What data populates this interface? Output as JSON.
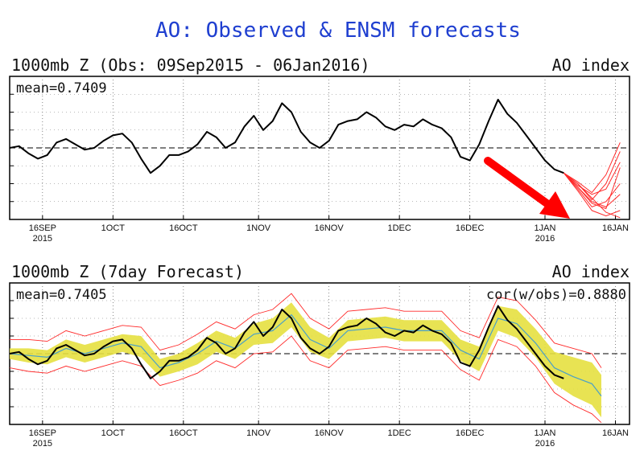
{
  "title": "AO: Observed & ENSM forecasts",
  "colors": {
    "title": "#1f3fd0",
    "observed": "#000000",
    "forecast_members": "#ff2a2a",
    "ensemble_spread": "#e6e040",
    "ensemble_mean": "#4aa0c8",
    "arrow": "#ff0000"
  },
  "chart_data": [
    {
      "type": "line",
      "panel_title": "1000mb Z (Obs: 09Sep2015 - 06Jan2016)",
      "index_label": "AO index",
      "stat_label": "mean=0.7409",
      "x_ticks": [
        {
          "day": 7,
          "label": "16SEP",
          "sub": "2015"
        },
        {
          "day": 22,
          "label": "1OCT",
          "sub": ""
        },
        {
          "day": 37,
          "label": "16OCT",
          "sub": ""
        },
        {
          "day": 53,
          "label": "1NOV",
          "sub": ""
        },
        {
          "day": 68,
          "label": "16NOV",
          "sub": ""
        },
        {
          "day": 83,
          "label": "1DEC",
          "sub": ""
        },
        {
          "day": 98,
          "label": "16DEC",
          "sub": ""
        },
        {
          "day": 114,
          "label": "1JAN",
          "sub": "2016"
        },
        {
          "day": 129,
          "label": "16JAN",
          "sub": ""
        }
      ],
      "xlim": [
        0,
        132
      ],
      "ylim": [
        -4,
        4
      ],
      "zero_line": "dashed",
      "grid": "dotted",
      "series": [
        {
          "role": "observed",
          "x": [
            0,
            2,
            4,
            6,
            8,
            10,
            12,
            14,
            16,
            18,
            20,
            22,
            24,
            26,
            28,
            30,
            32,
            34,
            36,
            38,
            40,
            42,
            44,
            46,
            48,
            50,
            52,
            54,
            56,
            58,
            60,
            62,
            64,
            66,
            68,
            70,
            72,
            74,
            76,
            78,
            80,
            82,
            84,
            86,
            88,
            90,
            92,
            94,
            96,
            98,
            100,
            102,
            104,
            106,
            108,
            110,
            112,
            114,
            116,
            118
          ],
          "y": [
            0.0,
            0.1,
            -0.3,
            -0.6,
            -0.4,
            0.3,
            0.5,
            0.2,
            -0.1,
            0.0,
            0.4,
            0.7,
            0.8,
            0.3,
            -0.6,
            -1.4,
            -1.0,
            -0.4,
            -0.4,
            -0.2,
            0.2,
            0.9,
            0.6,
            0.0,
            0.3,
            1.2,
            1.8,
            1.0,
            1.5,
            2.5,
            2.0,
            0.9,
            0.3,
            0.0,
            0.4,
            1.3,
            1.5,
            1.6,
            2.0,
            1.7,
            1.2,
            1.0,
            1.3,
            1.2,
            1.6,
            1.3,
            1.1,
            0.6,
            -0.5,
            -0.7,
            0.2,
            1.5,
            2.7,
            1.9,
            1.4,
            0.7,
            0.0,
            -0.7,
            -1.2,
            -1.4
          ]
        },
        {
          "role": "forecast_member",
          "x": [
            118,
            121,
            124,
            127,
            130
          ],
          "y": [
            -1.4,
            -2.2,
            -3.0,
            -3.3,
            -2.6
          ]
        },
        {
          "role": "forecast_member",
          "x": [
            118,
            121,
            124,
            127,
            130
          ],
          "y": [
            -1.4,
            -2.0,
            -2.8,
            -3.6,
            -3.9
          ]
        },
        {
          "role": "forecast_member",
          "x": [
            118,
            121,
            124,
            127,
            130
          ],
          "y": [
            -1.4,
            -2.3,
            -3.3,
            -3.0,
            -2.0
          ]
        },
        {
          "role": "forecast_member",
          "x": [
            118,
            121,
            124,
            127,
            130
          ],
          "y": [
            -1.4,
            -2.1,
            -2.6,
            -2.3,
            -0.8
          ]
        },
        {
          "role": "forecast_member",
          "x": [
            118,
            121,
            124,
            127,
            130
          ],
          "y": [
            -1.4,
            -2.4,
            -3.5,
            -3.8,
            -3.5
          ]
        },
        {
          "role": "forecast_member",
          "x": [
            118,
            121,
            124,
            127,
            130
          ],
          "y": [
            -1.4,
            -1.9,
            -2.5,
            -1.5,
            0.3
          ]
        },
        {
          "role": "forecast_member",
          "x": [
            118,
            121,
            124,
            127,
            130
          ],
          "y": [
            -1.4,
            -2.2,
            -3.1,
            -3.4,
            -1.1
          ]
        },
        {
          "role": "forecast_member",
          "x": [
            118,
            121,
            124,
            127,
            130
          ],
          "y": [
            -1.4,
            -2.0,
            -2.9,
            -2.0,
            -0.2
          ]
        }
      ]
    },
    {
      "type": "line",
      "panel_title": "1000mb Z (7day Forecast)",
      "index_label": "AO index",
      "stat_label": "mean=0.7405",
      "stat_label_right": "cor(w/obs)=0.8880",
      "x_ticks": [
        {
          "day": 7,
          "label": "16SEP",
          "sub": "2015"
        },
        {
          "day": 22,
          "label": "1OCT",
          "sub": ""
        },
        {
          "day": 37,
          "label": "16OCT",
          "sub": ""
        },
        {
          "day": 53,
          "label": "1NOV",
          "sub": ""
        },
        {
          "day": 68,
          "label": "16NOV",
          "sub": ""
        },
        {
          "day": 83,
          "label": "1DEC",
          "sub": ""
        },
        {
          "day": 98,
          "label": "16DEC",
          "sub": ""
        },
        {
          "day": 114,
          "label": "1JAN",
          "sub": "2016"
        },
        {
          "day": 129,
          "label": "16JAN",
          "sub": ""
        }
      ],
      "xlim": [
        0,
        132
      ],
      "ylim": [
        -4,
        4
      ],
      "zero_line": "dashed",
      "grid": "dotted",
      "series": [
        {
          "role": "observed",
          "x": [
            0,
            2,
            4,
            6,
            8,
            10,
            12,
            14,
            16,
            18,
            20,
            22,
            24,
            26,
            28,
            30,
            32,
            34,
            36,
            38,
            40,
            42,
            44,
            46,
            48,
            50,
            52,
            54,
            56,
            58,
            60,
            62,
            64,
            66,
            68,
            70,
            72,
            74,
            76,
            78,
            80,
            82,
            84,
            86,
            88,
            90,
            92,
            94,
            96,
            98,
            100,
            102,
            104,
            106,
            108,
            110,
            112,
            114,
            116,
            118
          ],
          "y": [
            0.0,
            0.1,
            -0.3,
            -0.6,
            -0.4,
            0.3,
            0.5,
            0.2,
            -0.1,
            0.0,
            0.4,
            0.7,
            0.8,
            0.3,
            -0.6,
            -1.4,
            -1.0,
            -0.4,
            -0.4,
            -0.2,
            0.2,
            0.9,
            0.6,
            0.0,
            0.3,
            1.2,
            1.8,
            1.0,
            1.5,
            2.5,
            2.0,
            0.9,
            0.3,
            0.0,
            0.4,
            1.3,
            1.5,
            1.6,
            2.0,
            1.7,
            1.2,
            1.0,
            1.3,
            1.2,
            1.6,
            1.3,
            1.1,
            0.6,
            -0.5,
            -0.7,
            0.2,
            1.5,
            2.7,
            1.9,
            1.4,
            0.7,
            0.0,
            -0.7,
            -1.2,
            -1.4
          ]
        },
        {
          "role": "ensemble_mean",
          "x": [
            0,
            4,
            8,
            12,
            16,
            20,
            24,
            28,
            32,
            36,
            40,
            44,
            48,
            52,
            56,
            60,
            64,
            68,
            72,
            76,
            80,
            84,
            88,
            92,
            96,
            100,
            104,
            108,
            112,
            116,
            120,
            124,
            126
          ],
          "y": [
            0.0,
            -0.1,
            -0.2,
            0.3,
            0.0,
            0.3,
            0.6,
            0.4,
            -0.8,
            -0.5,
            0.0,
            0.7,
            0.3,
            1.1,
            1.3,
            2.2,
            0.8,
            0.3,
            1.3,
            1.4,
            1.5,
            1.3,
            1.3,
            1.3,
            0.2,
            -0.3,
            2.0,
            1.7,
            0.6,
            -0.8,
            -1.3,
            -1.7,
            -2.4
          ]
        },
        {
          "role": "spread_band",
          "x": [
            0,
            4,
            8,
            12,
            16,
            20,
            24,
            28,
            32,
            36,
            40,
            44,
            48,
            52,
            56,
            60,
            64,
            68,
            72,
            76,
            80,
            84,
            88,
            92,
            96,
            100,
            104,
            108,
            112,
            116,
            120,
            124,
            126
          ],
          "lower": [
            -0.3,
            -0.5,
            -0.6,
            -0.2,
            -0.5,
            -0.2,
            0.1,
            -0.2,
            -1.3,
            -1.0,
            -0.6,
            0.1,
            -0.3,
            0.5,
            0.6,
            1.5,
            0.1,
            -0.3,
            0.7,
            0.8,
            0.9,
            0.7,
            0.7,
            0.7,
            -0.4,
            -1.0,
            1.3,
            0.9,
            -0.2,
            -1.7,
            -2.4,
            -2.9,
            -3.6
          ],
          "upper": [
            0.3,
            0.3,
            0.2,
            0.8,
            0.5,
            0.8,
            1.1,
            1.0,
            -0.3,
            0.0,
            0.6,
            1.3,
            0.9,
            1.7,
            2.0,
            2.9,
            1.5,
            0.9,
            1.9,
            2.0,
            2.1,
            1.9,
            1.9,
            1.9,
            0.8,
            0.4,
            2.7,
            2.5,
            1.4,
            0.1,
            -0.2,
            -0.5,
            -1.2
          ]
        },
        {
          "role": "spread_envelope",
          "x": [
            0,
            4,
            8,
            12,
            16,
            20,
            24,
            28,
            32,
            36,
            40,
            44,
            48,
            52,
            56,
            60,
            64,
            68,
            72,
            76,
            80,
            84,
            88,
            92,
            96,
            100,
            104,
            108,
            112,
            116,
            120,
            124,
            126
          ],
          "lower": [
            -0.8,
            -1.0,
            -1.1,
            -0.7,
            -1.0,
            -0.7,
            -0.4,
            -0.7,
            -1.8,
            -1.5,
            -1.1,
            -0.4,
            -0.8,
            0.0,
            0.1,
            1.0,
            -0.4,
            -0.8,
            0.2,
            0.3,
            0.4,
            0.2,
            0.2,
            0.2,
            -0.9,
            -1.5,
            0.8,
            0.4,
            -0.7,
            -2.2,
            -2.9,
            -3.4,
            -3.9
          ],
          "upper": [
            0.8,
            0.8,
            0.7,
            1.3,
            1.0,
            1.3,
            1.6,
            1.5,
            0.2,
            0.5,
            1.1,
            1.8,
            1.4,
            2.2,
            2.5,
            3.4,
            2.0,
            1.4,
            2.4,
            2.5,
            2.6,
            2.4,
            2.4,
            2.4,
            1.3,
            0.9,
            3.2,
            3.0,
            1.9,
            0.6,
            0.3,
            0.0,
            -0.8
          ]
        }
      ]
    }
  ]
}
